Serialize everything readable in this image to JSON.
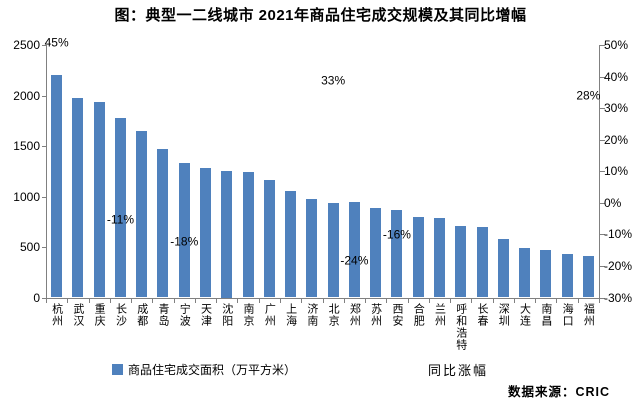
{
  "page": {
    "title": "图：典型一二线城市 2021年商品住宅成交规模及其同比增幅",
    "source": "数据来源：CRIC"
  },
  "legend": {
    "bar_label": "商品住宅成交面积（万平方米）",
    "line_label": "同比涨幅"
  },
  "colors": {
    "bar": "#4F81BD",
    "axis_line": "#808080",
    "text": "#000000",
    "background": "#FFFFFF"
  },
  "chart_data": {
    "type": "bar",
    "title": "图：典型一二线城市 2021年商品住宅成交规模及其同比增幅",
    "source": "数据来源：CRIC",
    "categories": [
      "杭州",
      "武汉",
      "重庆",
      "长沙",
      "成都",
      "青岛",
      "宁波",
      "天津",
      "沈阳",
      "南京",
      "广州",
      "上海",
      "济南",
      "北京",
      "郑州",
      "苏州",
      "西安",
      "合肥",
      "兰州",
      "呼和浩特",
      "长春",
      "深圳",
      "大连",
      "南昌",
      "海口",
      "福州"
    ],
    "series": [
      {
        "name": "商品住宅成交面积（万平方米）",
        "type": "bar",
        "axis": "left",
        "color": "#4F81BD",
        "values": [
          2200,
          1980,
          1935,
          1775,
          1650,
          1470,
          1330,
          1280,
          1250,
          1240,
          1165,
          1050,
          980,
          940,
          950,
          890,
          870,
          800,
          785,
          710,
          700,
          580,
          490,
          470,
          430,
          415
        ]
      },
      {
        "name": "同比涨幅",
        "type": "line",
        "axis": "right",
        "style": "labels-only",
        "visible_labels": [
          {
            "category": "杭州",
            "value": 45,
            "label": "45%"
          },
          {
            "category": "长沙",
            "value": -11,
            "label": "-11%"
          },
          {
            "category": "宁波",
            "value": -18,
            "label": "-18%"
          },
          {
            "category": "北京",
            "value": 33,
            "label": "33%"
          },
          {
            "category": "郑州",
            "value": -24,
            "label": "-24%"
          },
          {
            "category": "西安",
            "value": -16,
            "label": "-16%"
          },
          {
            "category": "福州",
            "value": 28,
            "label": "28%"
          }
        ]
      }
    ],
    "left_axis": {
      "min": 0,
      "max": 2500,
      "step": 500,
      "tick_labels": [
        "0",
        "500",
        "1000",
        "1500",
        "2000",
        "2500"
      ]
    },
    "right_axis": {
      "min": -30,
      "max": 50,
      "step": 10,
      "tick_labels": [
        "50%",
        "40%",
        "30%",
        "20%",
        "10%",
        "0%",
        "-10%",
        "-20%",
        "-30%"
      ]
    },
    "grid": false,
    "legend_position": "bottom"
  }
}
